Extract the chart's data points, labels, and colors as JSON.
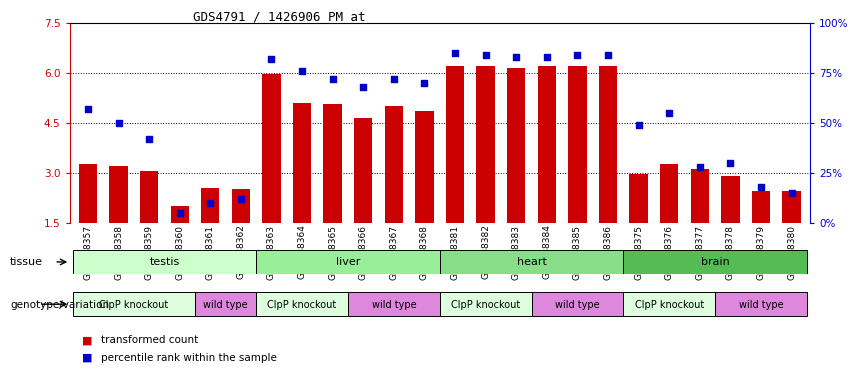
{
  "title": "GDS4791 / 1426906_PM_at",
  "samples": [
    "GSM988357",
    "GSM988358",
    "GSM988359",
    "GSM988360",
    "GSM988361",
    "GSM988362",
    "GSM988363",
    "GSM988364",
    "GSM988365",
    "GSM988366",
    "GSM988367",
    "GSM988368",
    "GSM988381",
    "GSM988382",
    "GSM988383",
    "GSM988384",
    "GSM988385",
    "GSM988386",
    "GSM988375",
    "GSM988376",
    "GSM988377",
    "GSM988378",
    "GSM988379",
    "GSM988380"
  ],
  "red_values": [
    3.25,
    3.2,
    3.05,
    2.0,
    2.55,
    2.5,
    5.98,
    5.1,
    5.05,
    4.65,
    5.0,
    4.85,
    6.2,
    6.2,
    6.15,
    6.2,
    6.2,
    6.2,
    2.95,
    3.25,
    3.1,
    2.9,
    2.45,
    2.45
  ],
  "blue_values": [
    57,
    50,
    42,
    5,
    10,
    12,
    82,
    76,
    72,
    68,
    72,
    70,
    85,
    84,
    83,
    83,
    84,
    84,
    49,
    55,
    28,
    30,
    18,
    15
  ],
  "ylim_left": [
    1.5,
    7.5
  ],
  "ylim_right": [
    0,
    100
  ],
  "yticks_left": [
    1.5,
    3.0,
    4.5,
    6.0,
    7.5
  ],
  "yticks_right": [
    0,
    25,
    50,
    75,
    100
  ],
  "ytick_labels_right": [
    "0%",
    "25%",
    "50%",
    "75%",
    "100%"
  ],
  "bar_color": "#cc0000",
  "dot_color": "#0000cc",
  "bar_bottom": 1.5,
  "tissues": [
    {
      "label": "testis",
      "start": 0,
      "end": 6,
      "color": "#ccffcc"
    },
    {
      "label": "liver",
      "start": 6,
      "end": 12,
      "color": "#99ee99"
    },
    {
      "label": "heart",
      "start": 12,
      "end": 18,
      "color": "#88dd88"
    },
    {
      "label": "brain",
      "start": 18,
      "end": 24,
      "color": "#55bb55"
    }
  ],
  "genotype_groups": [
    {
      "label": "ClpP knockout",
      "start": 0,
      "end": 4,
      "color": "#ddffdd"
    },
    {
      "label": "wild type",
      "start": 4,
      "end": 6,
      "color": "#dd88dd"
    },
    {
      "label": "ClpP knockout",
      "start": 6,
      "end": 9,
      "color": "#ddffdd"
    },
    {
      "label": "wild type",
      "start": 9,
      "end": 12,
      "color": "#dd88dd"
    },
    {
      "label": "ClpP knockout",
      "start": 12,
      "end": 15,
      "color": "#ddffdd"
    },
    {
      "label": "wild type",
      "start": 15,
      "end": 18,
      "color": "#dd88dd"
    },
    {
      "label": "ClpP knockout",
      "start": 18,
      "end": 21,
      "color": "#ddffdd"
    },
    {
      "label": "wild type",
      "start": 21,
      "end": 24,
      "color": "#dd88dd"
    }
  ],
  "row_label_tissue": "tissue",
  "row_label_genotype": "genotype/variation",
  "legend_items": [
    {
      "color": "#cc0000",
      "label": "transformed count"
    },
    {
      "color": "#0000cc",
      "label": "percentile rank within the sample"
    }
  ],
  "title_fontsize": 9,
  "tick_fontsize": 6.5,
  "bar_width": 0.6,
  "dot_size": 18
}
